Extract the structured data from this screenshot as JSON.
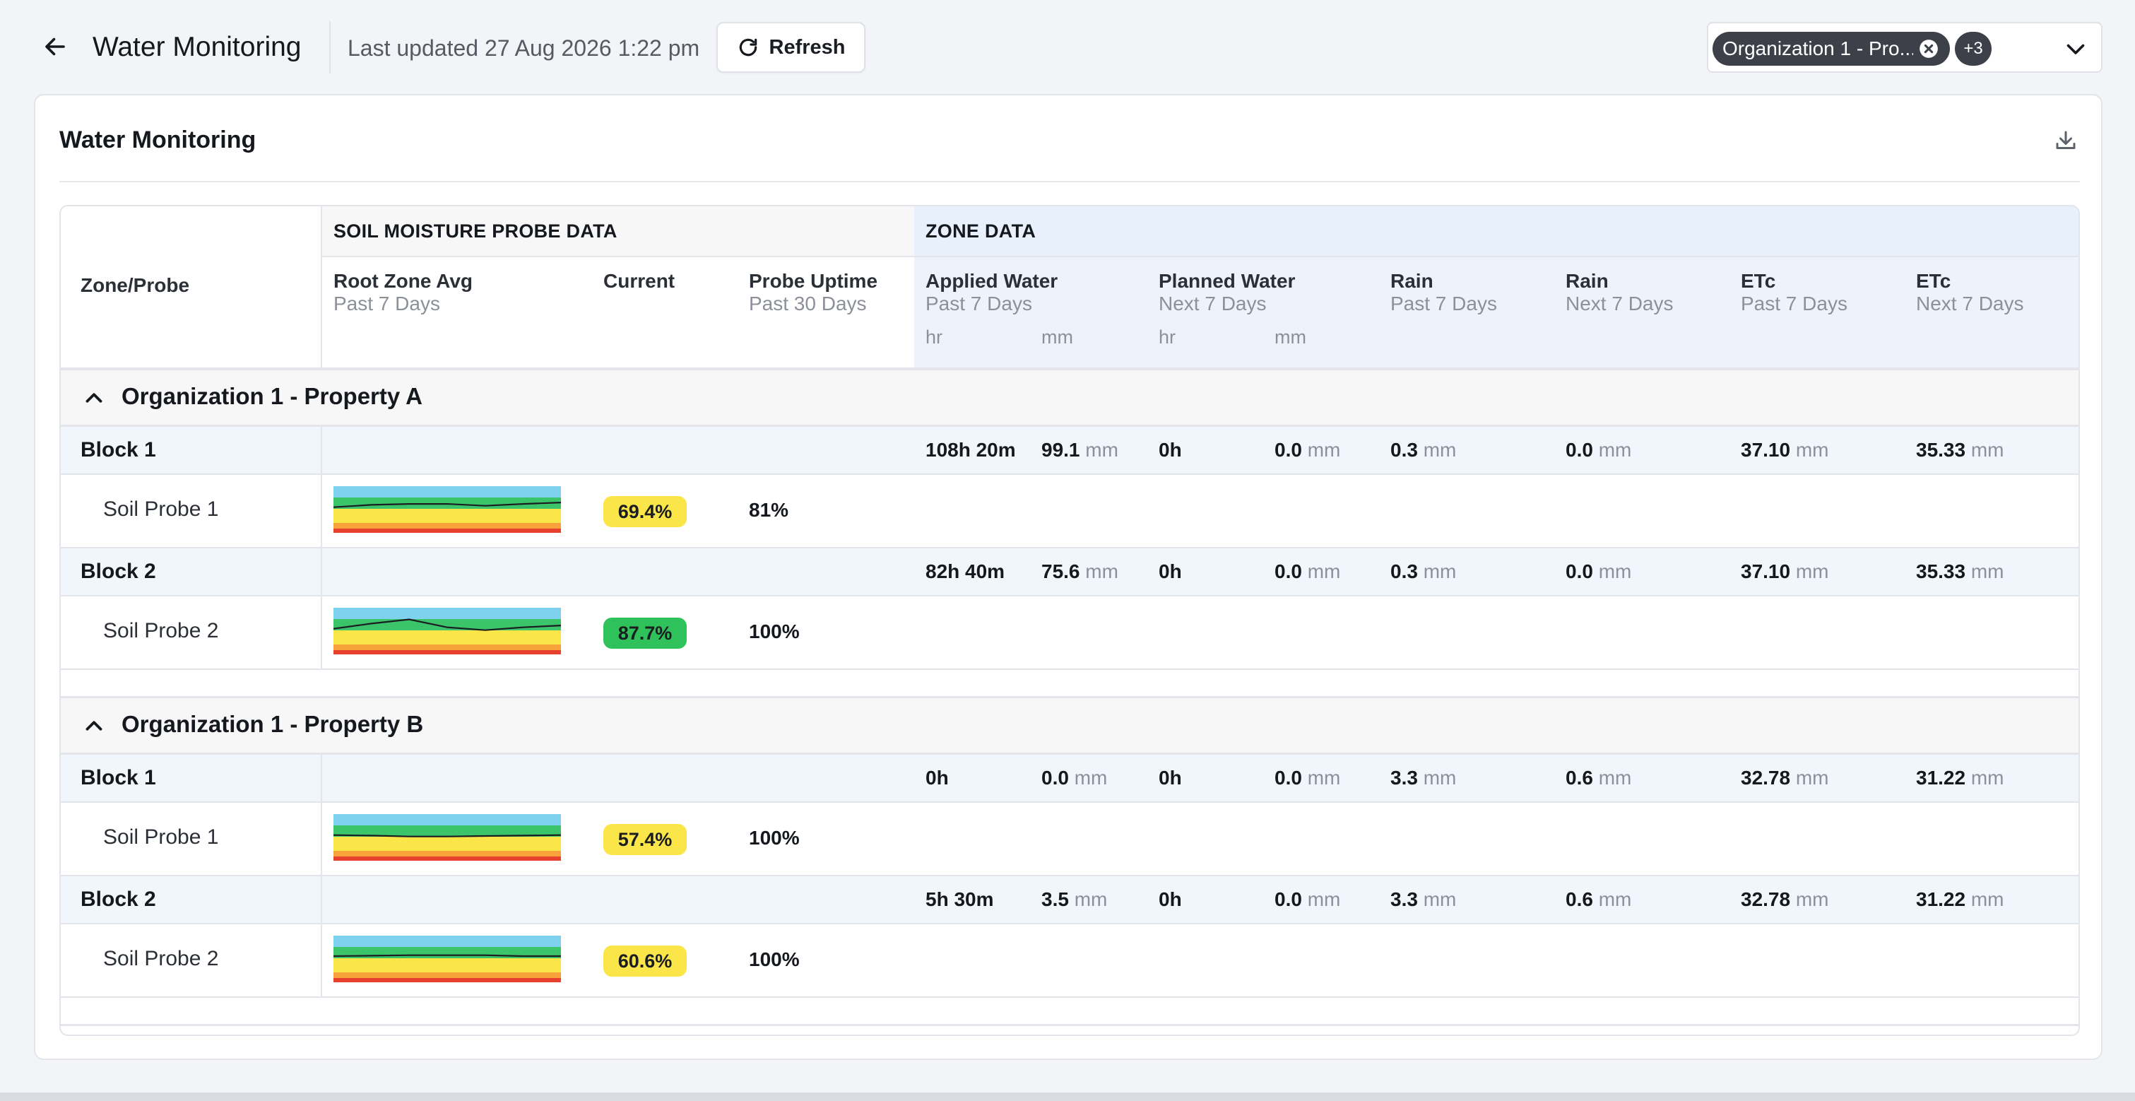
{
  "header": {
    "title": "Water Monitoring",
    "last_updated": "Last updated 27 Aug 2026 1:22 pm",
    "refresh_label": "Refresh",
    "filter_chip": "Organization 1 - Pro...",
    "filter_more": "+3"
  },
  "card": {
    "title": "Water Monitoring"
  },
  "table": {
    "zone_probe_label": "Zone/Probe",
    "group_soil": "SOIL MOISTURE PROBE DATA",
    "group_zone": "ZONE DATA",
    "columns": [
      {
        "name": "Root Zone Avg",
        "sub": "Past 7 Days"
      },
      {
        "name": "Current",
        "sub": ""
      },
      {
        "name": "Probe Uptime",
        "sub": "Past 30 Days"
      },
      {
        "name": "Applied Water",
        "sub": "Past 7 Days"
      },
      {
        "name": "Planned Water",
        "sub": "Next 7 Days"
      },
      {
        "name": "Rain",
        "sub": "Past 7 Days"
      },
      {
        "name": "Rain",
        "sub": "Next 7 Days"
      },
      {
        "name": "ETc",
        "sub": "Past 7 Days"
      },
      {
        "name": "ETc",
        "sub": "Next 7 Days"
      }
    ],
    "unit_hr": "hr",
    "unit_mm": "mm",
    "mm": "mm",
    "sections": [
      {
        "label": "Organization 1 - Property A",
        "blocks": [
          {
            "name": "Block 1",
            "applied_hr": "108h 20m",
            "applied_mm": "99.1",
            "planned_hr": "0h",
            "planned_mm": "0.0",
            "rain_past": "0.3",
            "rain_next": "0.0",
            "etc_past": "37.10",
            "etc_next": "35.33",
            "probe": {
              "name": "Soil Probe 1",
              "current": "69.4%",
              "uptime": "81%",
              "status": "yellow",
              "trend": [
                0.55,
                0.6,
                0.62,
                0.62,
                0.58,
                0.62,
                0.65
              ]
            }
          },
          {
            "name": "Block 2",
            "applied_hr": "82h 40m",
            "applied_mm": "75.6",
            "planned_hr": "0h",
            "planned_mm": "0.0",
            "rain_past": "0.3",
            "rain_next": "0.0",
            "etc_past": "37.10",
            "etc_next": "35.33",
            "probe": {
              "name": "Soil Probe 2",
              "current": "87.7%",
              "uptime": "100%",
              "status": "green",
              "trend": [
                0.55,
                0.66,
                0.75,
                0.58,
                0.52,
                0.58,
                0.62
              ]
            }
          }
        ]
      },
      {
        "label": "Organization 1 - Property B",
        "blocks": [
          {
            "name": "Block 1",
            "applied_hr": "0h",
            "applied_mm": "0.0",
            "planned_hr": "0h",
            "planned_mm": "0.0",
            "rain_past": "3.3",
            "rain_next": "0.6",
            "etc_past": "32.78",
            "etc_next": "31.22",
            "probe": {
              "name": "Soil Probe 1",
              "current": "57.4%",
              "uptime": "100%",
              "status": "yellow",
              "trend": [
                0.55,
                0.54,
                0.52,
                0.52,
                0.53,
                0.54,
                0.55
              ]
            }
          },
          {
            "name": "Block 2",
            "applied_hr": "5h 30m",
            "applied_mm": "3.5",
            "planned_hr": "0h",
            "planned_mm": "0.0",
            "rain_past": "3.3",
            "rain_next": "0.6",
            "etc_past": "32.78",
            "etc_next": "31.22",
            "probe": {
              "name": "Soil Probe 2",
              "current": "60.6%",
              "uptime": "100%",
              "status": "yellow",
              "trend": [
                0.56,
                0.57,
                0.58,
                0.58,
                0.58,
                0.56,
                0.56
              ]
            }
          }
        ]
      }
    ]
  },
  "colors": {
    "band_blue": "#7fd2ee",
    "band_green": "#3cc46b",
    "band_yellow": "#fbe64a",
    "band_orange": "#f7a23a",
    "band_red": "#e8402e",
    "trend_line": "#1a1d22"
  },
  "icons": {
    "back": "arrow-left-icon",
    "refresh": "refresh-icon",
    "chip_close": "close-circle-icon",
    "dropdown": "chevron-down-icon",
    "download": "download-icon",
    "collapse": "chevron-up-icon"
  }
}
